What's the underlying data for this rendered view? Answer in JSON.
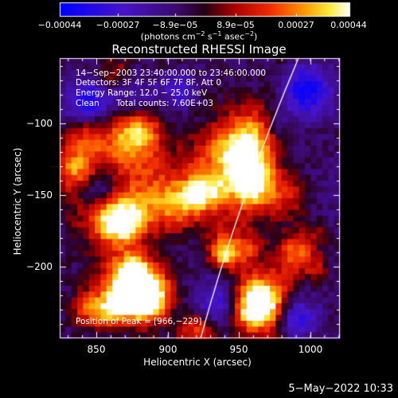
{
  "colorbar": {
    "ticks": [
      "−0.00044",
      "−0.00027",
      "−8.9e−05",
      "8.9e−05",
      "0.00027",
      "0.00044"
    ],
    "unit_main": "(photons cm",
    "unit_sup1": "−2",
    "unit_mid1": " s",
    "unit_sup2": "−1",
    "unit_mid2": " asec",
    "unit_sup3": "−2",
    "unit_end": ")"
  },
  "title": "Reconstructed RHESSI Image",
  "info": {
    "time_range": "14−Sep−2003 23:40:00.000 to 23:46:00.000",
    "detectors": "Detectors: 3F 4F 5F 6F 7F 8F, Att 0",
    "energy": "Energy Range: 12.0 − 25.0 keV",
    "method": "Clean",
    "counts": "Total counts: 7.60E+03"
  },
  "peak": "Position of Peak = [966,−229]",
  "axes": {
    "xlabel": "Heliocentric X (arcsec)",
    "ylabel": "Heliocentric Y (arcsec)",
    "xticks": [
      "850",
      "900",
      "950",
      "1000"
    ],
    "yticks": [
      "−100",
      "−150",
      "−200"
    ]
  },
  "date": "5−May−2022 10:33",
  "colors": {
    "background": "#000000",
    "foreground": "#ffffff"
  }
}
